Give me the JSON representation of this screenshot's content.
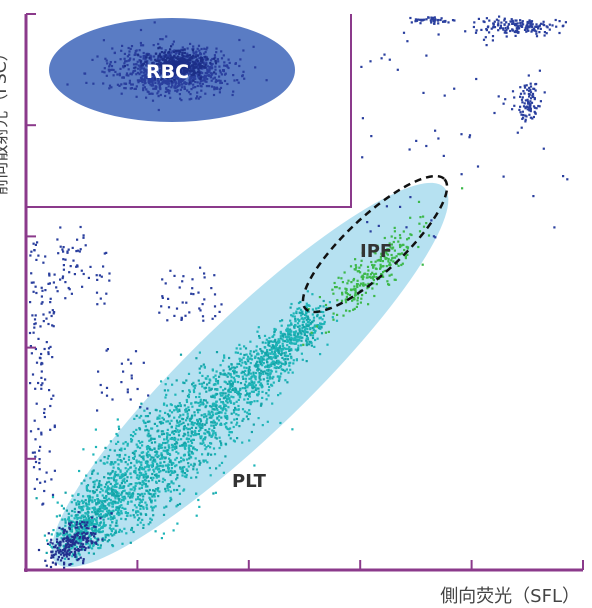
{
  "chart_data": {
    "type": "scatter",
    "title": "",
    "xlabel": "側向荧光（SFL）",
    "ylabel": "前向散射光（FSC）",
    "xlim": [
      0,
      100
    ],
    "ylim": [
      0,
      100
    ],
    "grid": false,
    "populations": [
      {
        "name": "RBC",
        "color": "#2a3f9e",
        "region_color": "#5a7cc4"
      },
      {
        "name": "PLT",
        "color": "#1fb5b8",
        "region_color": "#a9dcee"
      },
      {
        "name": "IPF",
        "color": "#3cb84a",
        "region_color": "none"
      }
    ],
    "gate": {
      "x_max": 59,
      "y_min": 62
    }
  },
  "colors": {
    "axis": "#8b3a8b",
    "background_dots": "#2a3f9e"
  }
}
